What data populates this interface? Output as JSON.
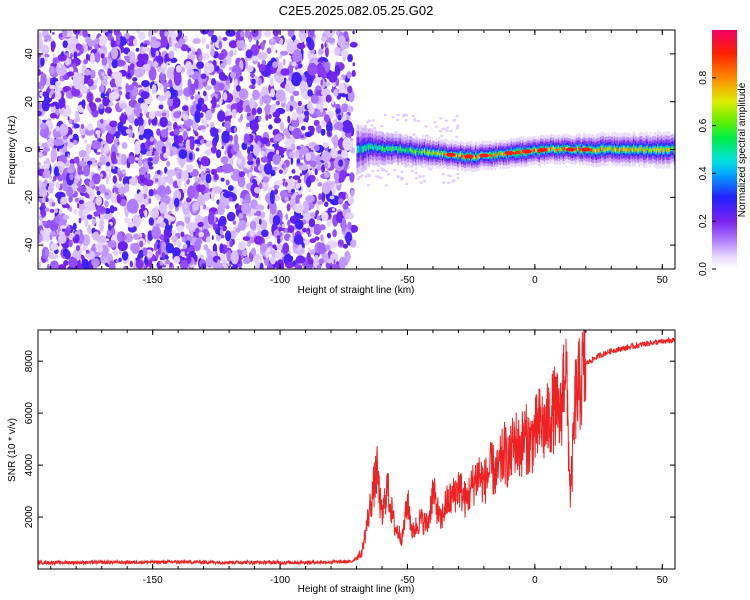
{
  "title": "C2E5.2025.082.05.25.G02",
  "chart_data": [
    {
      "type": "heatmap",
      "xlabel": "Height of straight line (km)",
      "ylabel": "Frequency (Hz)",
      "xlim": [
        -195,
        55
      ],
      "ylim": [
        -50,
        50
      ],
      "xticks": [
        -150,
        -100,
        -50,
        0,
        50
      ],
      "yticks": [
        -40,
        -20,
        0,
        20,
        40
      ],
      "xtick_labels": [
        "-150",
        "-100",
        "-50",
        "0",
        "50"
      ],
      "ytick_labels": [
        "-40",
        "-20",
        "0",
        "20",
        "40"
      ],
      "colorbar": {
        "label": "Normalized spectral amplitude",
        "range": [
          0,
          1
        ],
        "ticks": [
          0,
          0.2,
          0.4,
          0.6,
          0.8
        ],
        "tick_labels": [
          "0.0",
          "0.2",
          "0.4",
          "0.6",
          "0.8"
        ]
      },
      "regions": {
        "noise_x_range": [
          -195,
          -71
        ],
        "noise_amplitude": [
          0.05,
          0.28
        ],
        "signal_x_range": [
          -70,
          55
        ],
        "signal_profile": [
          {
            "x": -70,
            "center": 0,
            "halfwidth": 7,
            "peak": 0.45
          },
          {
            "x": -65,
            "center": 1,
            "halfwidth": 5,
            "peak": 0.55
          },
          {
            "x": -55,
            "center": 0,
            "halfwidth": 4,
            "peak": 0.6
          },
          {
            "x": -45,
            "center": -1,
            "halfwidth": 3.5,
            "peak": 0.65
          },
          {
            "x": -35,
            "center": -2,
            "halfwidth": 3,
            "peak": 0.8
          },
          {
            "x": -25,
            "center": -3,
            "halfwidth": 3,
            "peak": 0.9
          },
          {
            "x": -15,
            "center": -2,
            "halfwidth": 3,
            "peak": 0.75
          },
          {
            "x": -5,
            "center": -1,
            "halfwidth": 3,
            "peak": 0.9
          },
          {
            "x": 5,
            "center": 0,
            "halfwidth": 3,
            "peak": 0.85
          },
          {
            "x": 15,
            "center": 0,
            "halfwidth": 3,
            "peak": 0.9
          },
          {
            "x": 25,
            "center": 0,
            "halfwidth": 3.5,
            "peak": 0.8
          },
          {
            "x": 40,
            "center": 0,
            "halfwidth": 3.5,
            "peak": 0.75
          },
          {
            "x": 55,
            "center": 0,
            "halfwidth": 4,
            "peak": 0.7
          }
        ]
      }
    },
    {
      "type": "line",
      "xlabel": "Height of straight line (km)",
      "ylabel": "SNR (10 * v/v)",
      "xlim": [
        -195,
        55
      ],
      "ylim": [
        0,
        9200
      ],
      "xticks": [
        -150,
        -100,
        -50,
        0,
        50
      ],
      "yticks": [
        2000,
        4000,
        6000,
        8000
      ],
      "xtick_labels": [
        "-150",
        "-100",
        "-50",
        "0",
        "50"
      ],
      "ytick_labels": [
        "2000",
        "4000",
        "6000",
        "8000"
      ],
      "series": [
        {
          "color": "#ee2222",
          "x": [
            -195,
            -180,
            -160,
            -140,
            -120,
            -100,
            -85,
            -72,
            -68,
            -65,
            -62,
            -60,
            -58,
            -55,
            -52,
            -50,
            -48,
            -45,
            -42,
            -40,
            -37,
            -35,
            -32,
            -30,
            -27,
            -25,
            -22,
            -20,
            -17,
            -15,
            -12,
            -10,
            -8,
            -6,
            -4,
            -2,
            0,
            2,
            4,
            6,
            8,
            10,
            12,
            14,
            16,
            18,
            20,
            25,
            30,
            35,
            40,
            45,
            50,
            55
          ],
          "y": [
            250,
            250,
            260,
            270,
            260,
            250,
            260,
            280,
            600,
            2200,
            3800,
            1900,
            3200,
            1600,
            1200,
            2600,
            1400,
            1900,
            1700,
            3000,
            1800,
            2500,
            2800,
            3200,
            2600,
            3100,
            3700,
            3300,
            3900,
            3600,
            4500,
            4100,
            5000,
            4600,
            5100,
            4800,
            5200,
            5600,
            5400,
            5900,
            6200,
            5700,
            8300,
            2700,
            6600,
            7200,
            7900,
            8200,
            8400,
            8500,
            8600,
            8700,
            8750,
            8800
          ]
        }
      ]
    }
  ]
}
